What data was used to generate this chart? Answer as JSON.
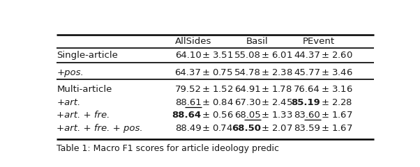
{
  "col_headers": [
    "",
    "AllSides",
    "Basil",
    "PEvent"
  ],
  "rows": [
    {
      "label": "Single-article",
      "label_italic": false,
      "values": [
        "64.10",
        "3.51",
        "55.08",
        "6.01",
        "44.37",
        "2.60"
      ],
      "bold": [
        false,
        false,
        false
      ],
      "underline": [
        false,
        false,
        false
      ]
    },
    {
      "label": "+pos.",
      "label_italic": true,
      "values": [
        "64.37",
        "0.75",
        "54.78",
        "2.38",
        "45.77",
        "3.46"
      ],
      "bold": [
        false,
        false,
        false
      ],
      "underline": [
        false,
        false,
        false
      ]
    },
    {
      "label": "Multi-article",
      "label_italic": false,
      "values": [
        "79.52",
        "1.52",
        "64.91",
        "1.78",
        "76.64",
        "3.16"
      ],
      "bold": [
        false,
        false,
        false
      ],
      "underline": [
        false,
        false,
        false
      ]
    },
    {
      "label": "+art.",
      "label_italic": true,
      "values": [
        "88.61",
        "0.84",
        "67.30",
        "2.45",
        "85.19",
        "2.28"
      ],
      "bold": [
        false,
        false,
        true
      ],
      "underline": [
        true,
        false,
        false
      ]
    },
    {
      "label": "+art. + fre.",
      "label_italic": true,
      "values": [
        "88.64",
        "0.56",
        "68.05",
        "1.33",
        "83.60",
        "1.67"
      ],
      "bold": [
        true,
        false,
        false
      ],
      "underline": [
        false,
        true,
        true
      ]
    },
    {
      "label": "+art. + fre. + pos.",
      "label_italic": true,
      "values": [
        "88.49",
        "0.74",
        "68.50",
        "2.07",
        "83.59",
        "1.67"
      ],
      "bold": [
        false,
        true,
        false
      ],
      "underline": [
        false,
        false,
        false
      ]
    }
  ],
  "separator_after_row": [
    1,
    2
  ],
  "bg_color": "#ffffff",
  "text_color": "#1a1a1a",
  "font_size": 9.5,
  "header_font_size": 9.5,
  "caption": "Table 1: Macro F1 scores for article ideology predic"
}
